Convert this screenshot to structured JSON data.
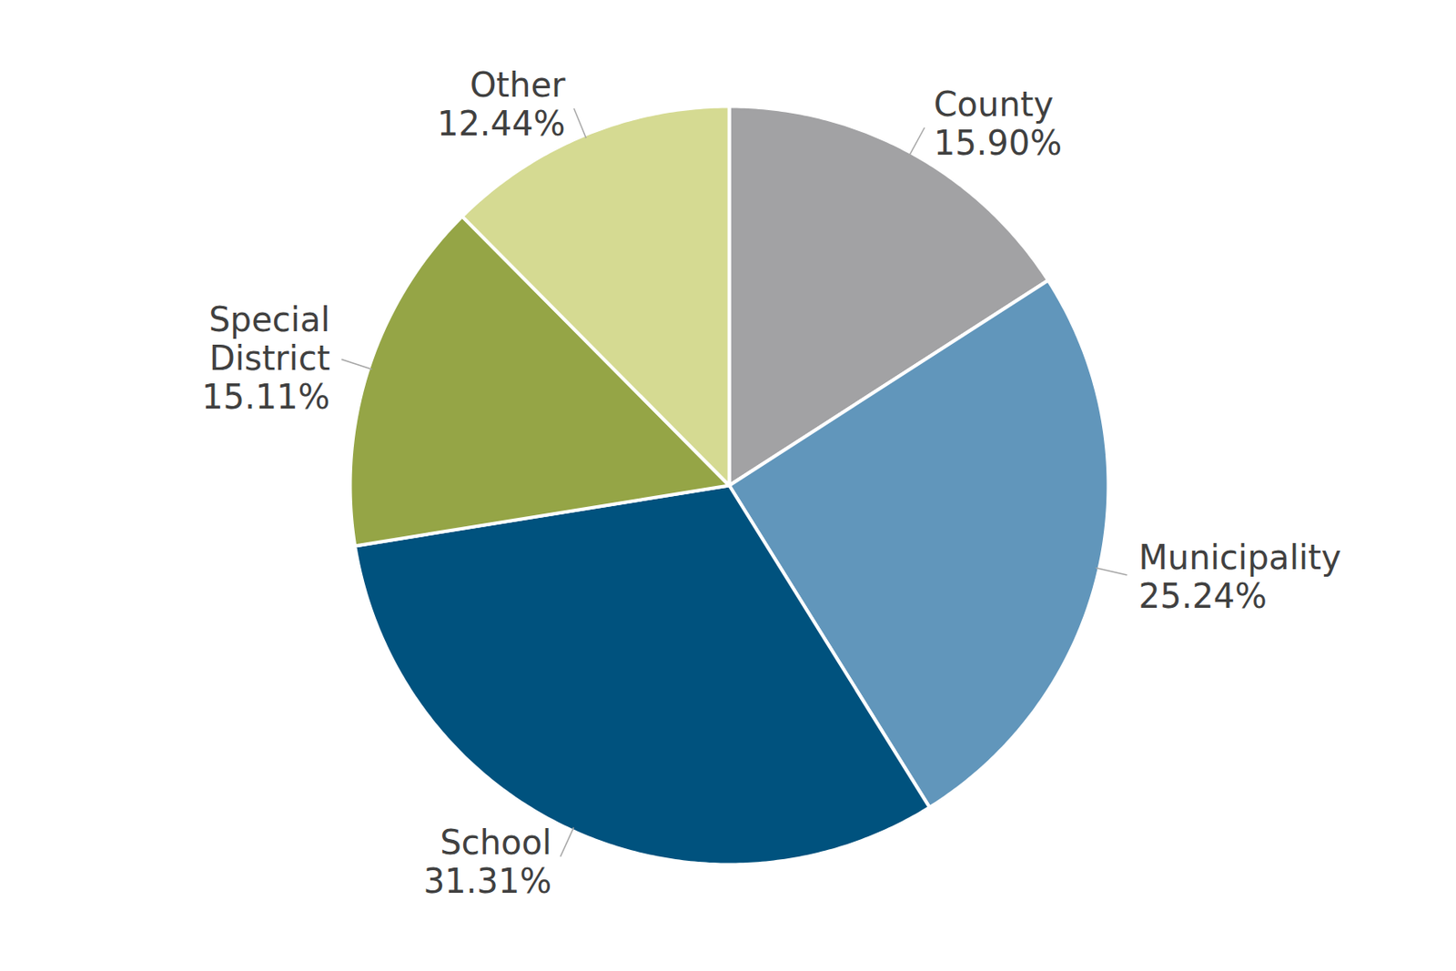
{
  "chart_data": {
    "type": "pie",
    "categories": [
      "County",
      "Municipality",
      "School",
      "Special District",
      "Other"
    ],
    "values": [
      15.9,
      25.24,
      31.31,
      15.11,
      12.44
    ],
    "value_labels": [
      "15.90%",
      "25.24%",
      "31.31%",
      "15.11%",
      "12.44%"
    ],
    "colors": [
      "#a2a2a4",
      "#6196bb",
      "#00527e",
      "#95a546",
      "#d5da92"
    ],
    "data_labels": true
  }
}
